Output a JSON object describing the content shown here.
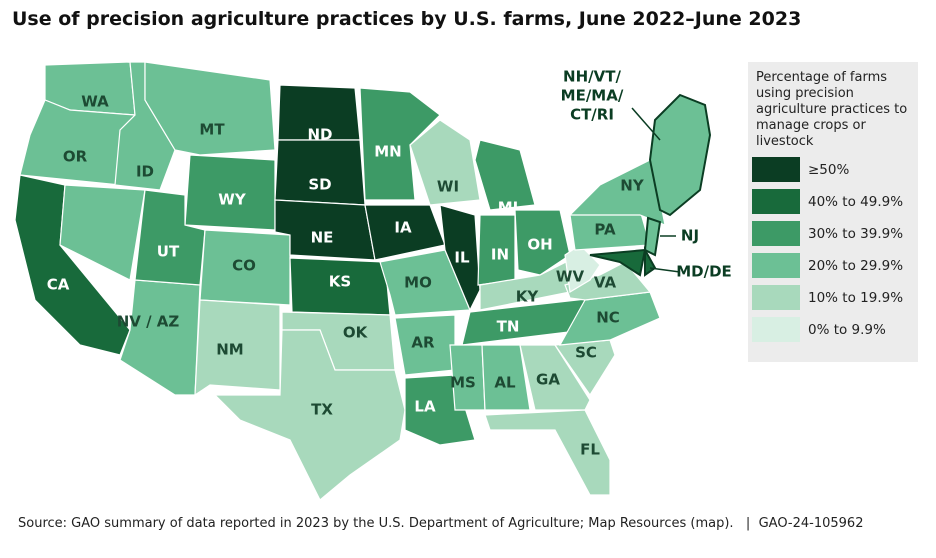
{
  "header": {
    "title": "Use of precision agriculture practices by U.S. farms, June 2022–June 2023"
  },
  "legend": {
    "title": "Percentage of farms using precision agriculture practices to manage crops or livestock",
    "items": [
      {
        "label": "≥50%",
        "color": "#0b3d23"
      },
      {
        "label": "40% to 49.9%",
        "color": "#186a3b"
      },
      {
        "label": "30% to 39.9%",
        "color": "#3d9a66"
      },
      {
        "label": "20% to 29.9%",
        "color": "#6cc095"
      },
      {
        "label": "10% to 19.9%",
        "color": "#a8d9bc"
      },
      {
        "label": "0% to 9.9%",
        "color": "#d8efe3"
      }
    ]
  },
  "states": [
    {
      "label": "WA",
      "class": 3
    },
    {
      "label": "OR",
      "class": 3
    },
    {
      "label": "CA",
      "class": 1
    },
    {
      "label": "ID",
      "class": 3
    },
    {
      "label": "NV / AZ",
      "class": 3
    },
    {
      "label": "MT",
      "class": 3
    },
    {
      "label": "WY",
      "class": 2
    },
    {
      "label": "UT",
      "class": 2
    },
    {
      "label": "CO",
      "class": 3
    },
    {
      "label": "NM",
      "class": 4
    },
    {
      "label": "ND",
      "class": 0
    },
    {
      "label": "SD",
      "class": 0
    },
    {
      "label": "NE",
      "class": 0
    },
    {
      "label": "KS",
      "class": 1
    },
    {
      "label": "OK",
      "class": 4
    },
    {
      "label": "TX",
      "class": 4
    },
    {
      "label": "MN",
      "class": 2
    },
    {
      "label": "IA",
      "class": 0
    },
    {
      "label": "MO",
      "class": 3
    },
    {
      "label": "AR",
      "class": 3
    },
    {
      "label": "LA",
      "class": 2
    },
    {
      "label": "WI",
      "class": 4
    },
    {
      "label": "IL",
      "class": 0
    },
    {
      "label": "MI",
      "class": 2
    },
    {
      "label": "IN",
      "class": 2
    },
    {
      "label": "OH",
      "class": 2
    },
    {
      "label": "KY",
      "class": 4
    },
    {
      "label": "TN",
      "class": 2
    },
    {
      "label": "MS",
      "class": 3
    },
    {
      "label": "AL",
      "class": 3
    },
    {
      "label": "GA",
      "class": 4
    },
    {
      "label": "FL",
      "class": 4
    },
    {
      "label": "SC",
      "class": 4
    },
    {
      "label": "NC",
      "class": 3
    },
    {
      "label": "VA",
      "class": 4
    },
    {
      "label": "WV",
      "class": 5
    },
    {
      "label": "PA",
      "class": 3
    },
    {
      "label": "NY",
      "class": 3
    },
    {
      "label": "NJ",
      "class": 3
    },
    {
      "label": "MD/DE",
      "class": 1
    },
    {
      "label": [
        "NH/VT/",
        "ME/MA/",
        "CT/RI"
      ],
      "class": 3
    }
  ],
  "footer": {
    "source": "Source: GAO summary of data reported in 2023 by the U.S. Department of Agriculture; Map Resources (map).",
    "id": "GAO-24-105962"
  }
}
